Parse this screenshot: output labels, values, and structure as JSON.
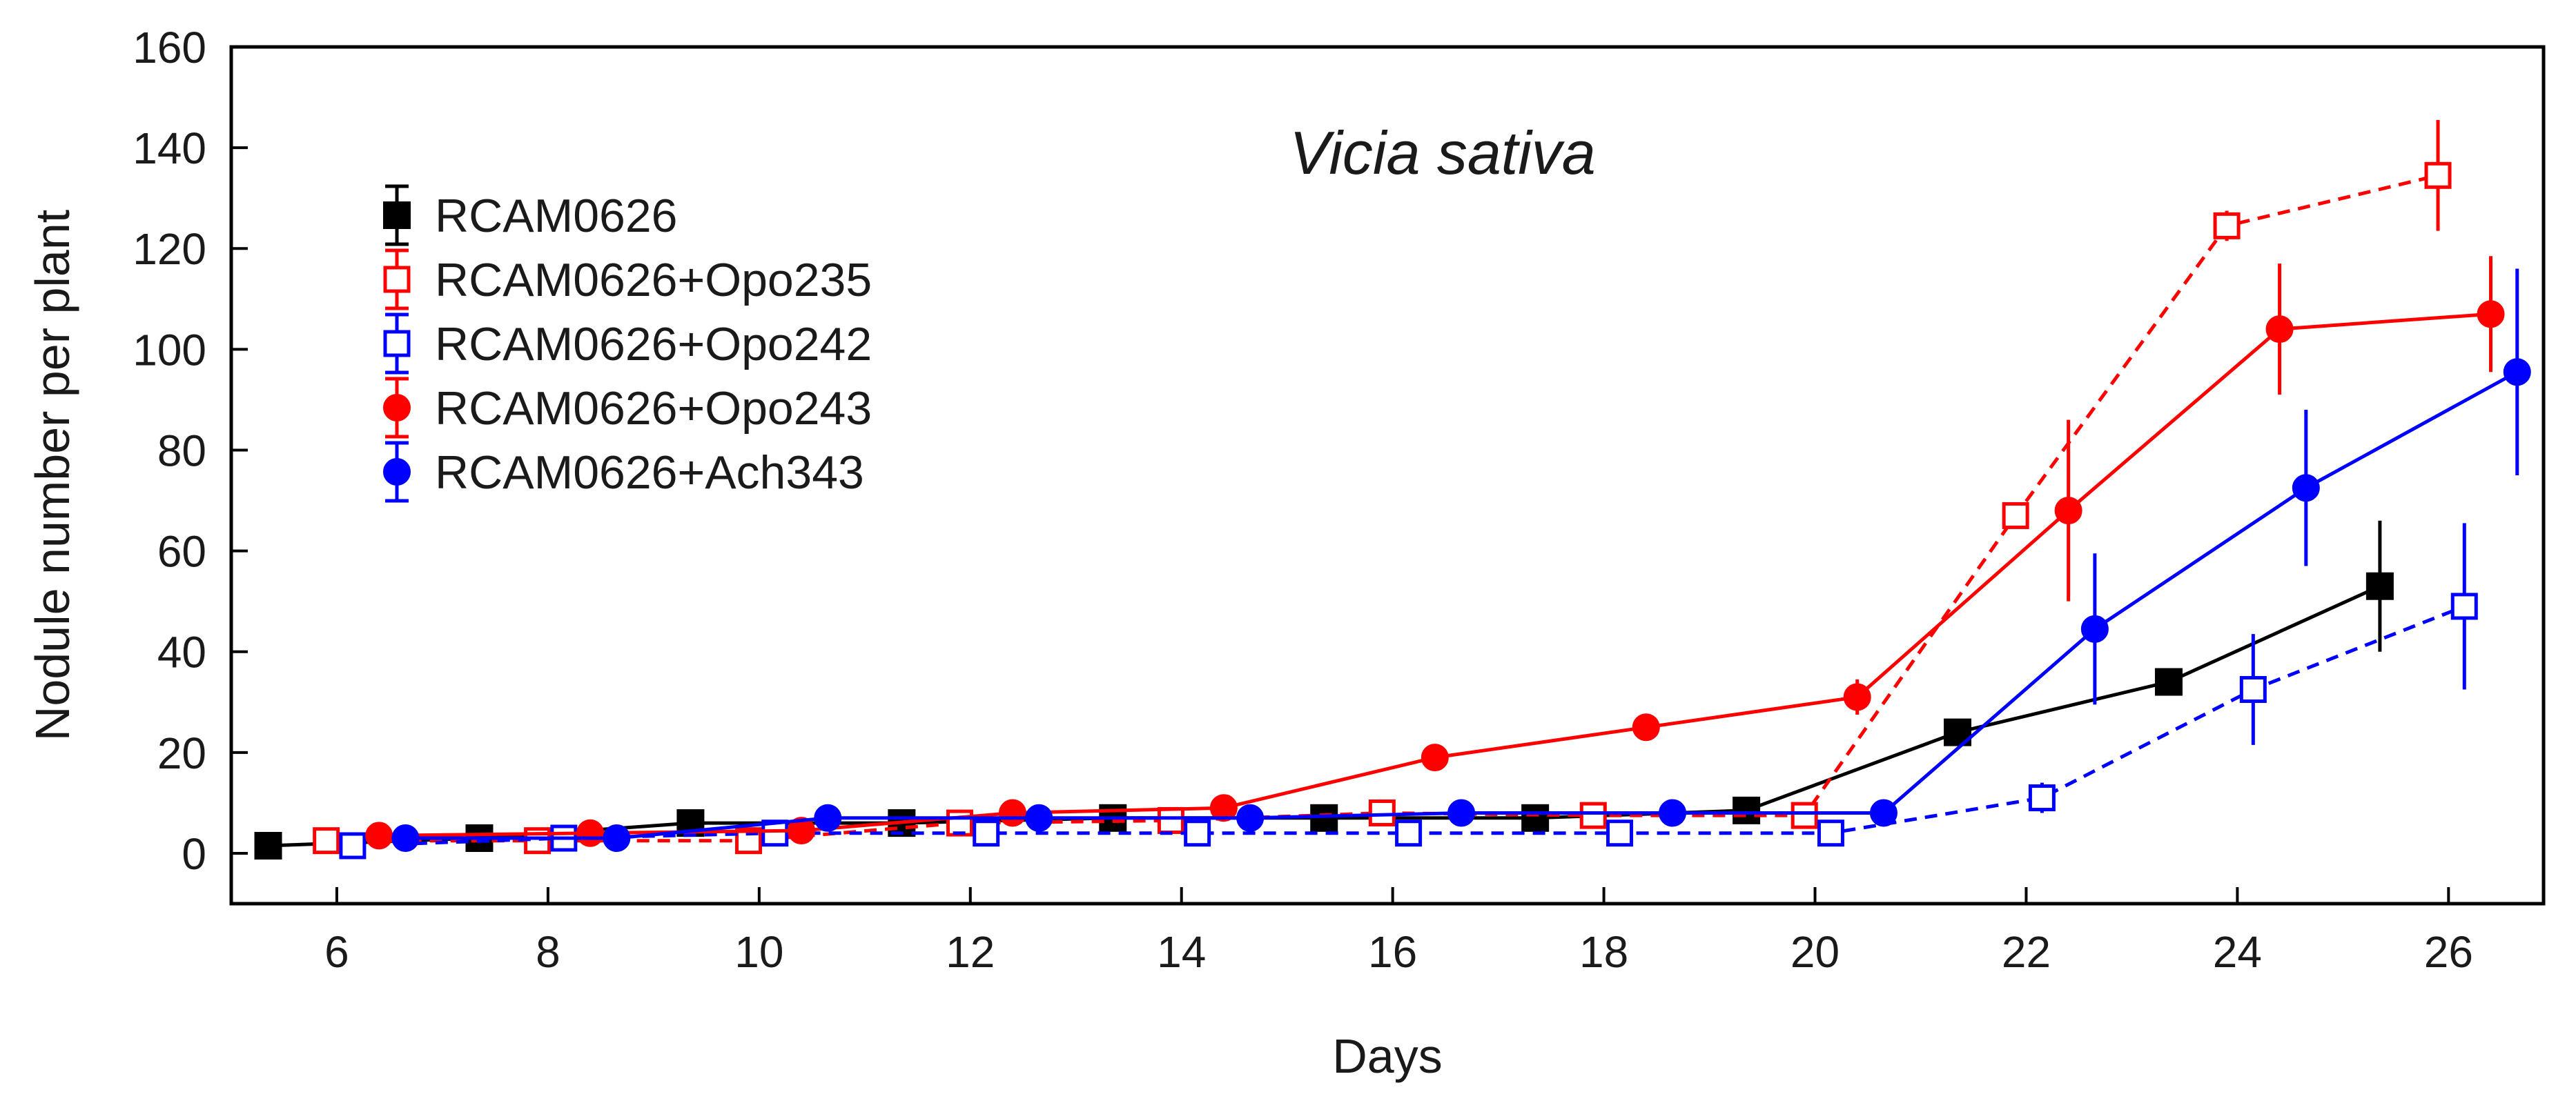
{
  "chart_data": {
    "type": "line",
    "title": "Vicia sativa",
    "xlabel": "Days",
    "ylabel": "Nodule number per plant",
    "xlim": [
      5,
      26.9
    ],
    "ylim": [
      -10,
      160
    ],
    "xticks": [
      6,
      8,
      10,
      12,
      14,
      16,
      18,
      20,
      22,
      24,
      26
    ],
    "yticks": [
      0,
      20,
      40,
      60,
      80,
      100,
      120,
      140,
      160
    ],
    "grid": false,
    "legend_position": "top-left",
    "series": [
      {
        "name": "RCAM0626",
        "color": "#000000",
        "marker": "square-filled",
        "dashed": false,
        "x": [
          5.35,
          7.35,
          9.35,
          11.35,
          13.35,
          15.35,
          17.35,
          19.35,
          21.35,
          23.35,
          25.35
        ],
        "y": [
          1.5,
          3,
          6,
          6,
          7,
          7,
          7,
          8.5,
          24,
          34,
          53
        ],
        "err": [
          0,
          0,
          0,
          0,
          0,
          0,
          0,
          0,
          2,
          2,
          13
        ]
      },
      {
        "name": "RCAM0626+Opo235",
        "color": "#ff0000",
        "marker": "square-open",
        "dashed": true,
        "x": [
          5.9,
          7.9,
          9.9,
          11.9,
          13.9,
          15.9,
          17.9,
          19.9,
          21.9,
          23.9,
          25.9
        ],
        "y": [
          2.5,
          2.5,
          2.5,
          6,
          6.5,
          8,
          7.5,
          7.5,
          67,
          124.5,
          134.5
        ],
        "err": [
          0,
          0,
          0,
          0,
          0,
          0,
          0,
          0,
          2,
          3,
          11
        ]
      },
      {
        "name": "RCAM0626+Opo242",
        "color": "#0000ff",
        "marker": "square-open",
        "dashed": true,
        "x": [
          6.15,
          8.15,
          10.15,
          12.15,
          14.15,
          16.15,
          18.15,
          20.15,
          22.15,
          24.15,
          26.15
        ],
        "y": [
          1.5,
          3,
          4,
          4,
          4,
          4,
          4,
          4,
          11,
          32.5,
          49
        ],
        "err": [
          0,
          0,
          0,
          0,
          0,
          0,
          0,
          0,
          3,
          11,
          16.5
        ]
      },
      {
        "name": "RCAM0626+Opo243",
        "color": "#ff0000",
        "marker": "circle-filled",
        "dashed": false,
        "x": [
          6.4,
          8.4,
          10.4,
          12.4,
          14.4,
          16.4,
          18.4,
          20.4,
          22.4,
          24.4,
          26.4
        ],
        "y": [
          3.5,
          4,
          4.5,
          8,
          9,
          19,
          25,
          31,
          68,
          104,
          107
        ],
        "err": [
          0,
          0,
          0,
          0,
          0,
          0,
          0,
          3.5,
          18,
          13,
          11.5
        ]
      },
      {
        "name": "RCAM0626+Ach343",
        "color": "#0000ff",
        "marker": "circle-filled",
        "dashed": false,
        "x": [
          6.65,
          8.65,
          10.65,
          12.65,
          14.65,
          16.65,
          18.65,
          20.65,
          22.65,
          24.65,
          26.65
        ],
        "y": [
          3,
          3,
          7,
          7,
          7,
          8,
          8,
          8,
          44.5,
          72.5,
          95.5
        ],
        "err": [
          0,
          0,
          0,
          0,
          0,
          0,
          0,
          0,
          15,
          15.5,
          20.5
        ]
      }
    ]
  }
}
